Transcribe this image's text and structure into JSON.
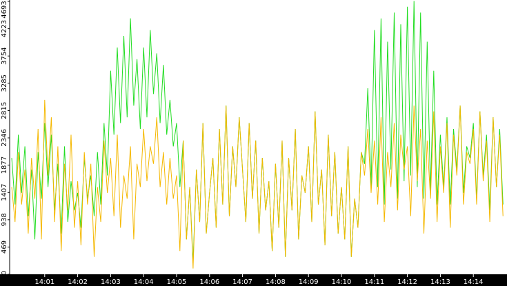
{
  "chart_data": {
    "type": "line",
    "categories": [
      null,
      null,
      null,
      null,
      null,
      null,
      null,
      null,
      null,
      null,
      "14:01",
      null,
      null,
      null,
      null,
      null,
      null,
      null,
      null,
      null,
      "14:02",
      null,
      null,
      null,
      null,
      null,
      null,
      null,
      null,
      null,
      "14:03",
      null,
      null,
      null,
      null,
      null,
      null,
      null,
      null,
      null,
      "14:04",
      null,
      null,
      null,
      null,
      null,
      null,
      null,
      null,
      null,
      "14:05",
      null,
      null,
      null,
      null,
      null,
      null,
      null,
      null,
      null,
      "14:06",
      null,
      null,
      null,
      null,
      null,
      null,
      null,
      null,
      null,
      "14:07",
      null,
      null,
      null,
      null,
      null,
      null,
      null,
      null,
      null,
      "14:08",
      null,
      null,
      null,
      null,
      null,
      null,
      null,
      null,
      null,
      "14:09",
      null,
      null,
      null,
      null,
      null,
      null,
      null,
      null,
      null,
      "14:10",
      null,
      null,
      null,
      null,
      null,
      null,
      null,
      null,
      null,
      "14:11",
      null,
      null,
      null,
      null,
      null,
      null,
      null,
      null,
      null,
      "14:12",
      null,
      null,
      null,
      null,
      null,
      null,
      null,
      null,
      null,
      "14:13",
      null,
      null,
      null,
      null,
      null,
      null,
      null,
      null,
      null,
      "14:14",
      null,
      null,
      null,
      null,
      null,
      null,
      null,
      null,
      null
    ],
    "series": [
      {
        "color": "#22dd22",
        "values": [
          2000,
          1200,
          2400,
          1400,
          2200,
          1000,
          1800,
          600,
          2100,
          1300,
          2600,
          1500,
          2400,
          1100,
          1900,
          700,
          2200,
          900,
          1600,
          1100,
          1400,
          800,
          2000,
          1300,
          1700,
          1000,
          2100,
          1200,
          2600,
          1700,
          3500,
          2400,
          3900,
          2600,
          4100,
          2700,
          4400,
          2900,
          3700,
          2500,
          3900,
          2700,
          4200,
          3100,
          3800,
          2600,
          3600,
          2400,
          3000,
          2200,
          2600,
          1500,
          2300,
          600,
          1500,
          200,
          1800,
          900,
          2600,
          700,
          1400,
          2000,
          800,
          2500,
          1200,
          2900,
          1000,
          2200,
          1500,
          2700,
          1800,
          900,
          2600,
          1300,
          2300,
          700,
          2000,
          1100,
          1600,
          400,
          1900,
          800,
          2300,
          300,
          2000,
          1100,
          2500,
          600,
          1700,
          1400,
          2200,
          900,
          2800,
          1200,
          1800,
          500,
          2400,
          1000,
          2100,
          700,
          1500,
          600,
          2200,
          300,
          1300,
          800,
          2100,
          1900,
          3200,
          1500,
          4200,
          1500,
          4400,
          1200,
          4000,
          1800,
          4500,
          1300,
          4300,
          1600,
          4600,
          1700,
          4700,
          1500,
          4500,
          1300,
          4000,
          1400,
          3500,
          1200,
          2400,
          1500,
          2700,
          1200,
          2500,
          1800,
          2900,
          1400,
          2200,
          2000,
          2600,
          1300,
          2800,
          1700,
          2400,
          1100,
          2700,
          1500,
          2500,
          1200
        ]
      },
      {
        "color": "#f5b800",
        "values": [
          1500,
          900,
          2100,
          1200,
          1800,
          700,
          2000,
          1300,
          2500,
          600,
          3000,
          1700,
          2700,
          900,
          2200,
          400,
          1900,
          1100,
          2400,
          800,
          1600,
          500,
          2100,
          1200,
          1900,
          300,
          1500,
          900,
          2300,
          1400,
          2000,
          1000,
          2400,
          800,
          1700,
          1300,
          2200,
          600,
          1900,
          1500,
          2500,
          1600,
          2200,
          1900,
          2700,
          1500,
          2100,
          1200,
          2000,
          1300,
          1700,
          400,
          2300,
          600,
          1500,
          100,
          1800,
          900,
          2600,
          700,
          1400,
          2000,
          800,
          2500,
          1200,
          2900,
          1000,
          2200,
          1500,
          2700,
          1800,
          900,
          2600,
          1300,
          2300,
          700,
          2000,
          1100,
          1600,
          400,
          1900,
          800,
          2300,
          300,
          2000,
          1100,
          2500,
          600,
          1700,
          1400,
          2200,
          900,
          2800,
          1200,
          1800,
          500,
          2400,
          1000,
          2100,
          700,
          1500,
          600,
          2200,
          300,
          1300,
          800,
          2100,
          1700,
          2500,
          1400,
          2300,
          1200,
          2700,
          900,
          2100,
          1500,
          2600,
          1100,
          2400,
          1800,
          2200,
          1000,
          2900,
          1600,
          2500,
          700,
          2300,
          1300,
          2800,
          900,
          2200,
          1400,
          2600,
          800,
          2400,
          1700,
          2900,
          1200,
          2100,
          1900,
          2500,
          1200,
          2800,
          1600,
          2300,
          900,
          2700,
          1500,
          2400,
          1000
        ]
      }
    ],
    "ylim": [
      0,
      4693
    ],
    "yticks": [
      0,
      469,
      938,
      1407,
      1877,
      2346,
      2815,
      3285,
      3754,
      4223,
      4693
    ]
  }
}
